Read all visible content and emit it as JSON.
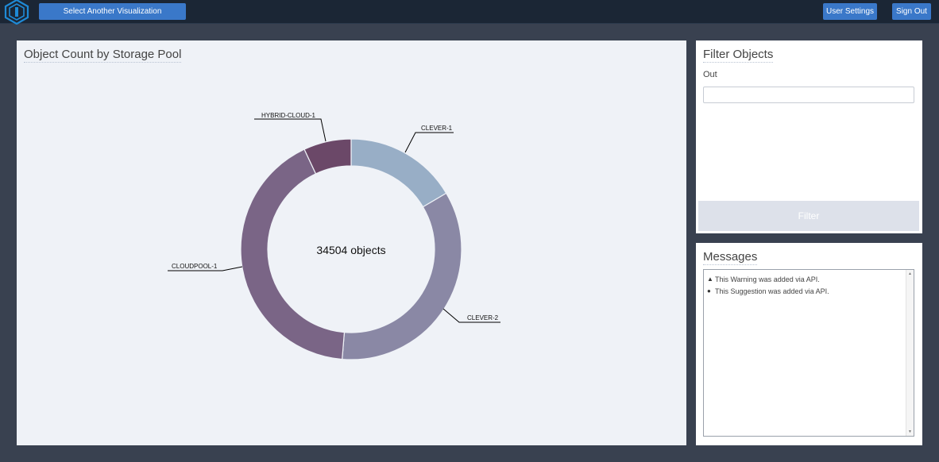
{
  "header": {
    "logo_icon": "hexagon-logo-icon",
    "select_viz_label": "Select Another Visualization",
    "user_settings_label": "User Settings",
    "sign_out_label": "Sign Out"
  },
  "chart_panel": {
    "title": "Object Count by Storage Pool"
  },
  "chart_data": {
    "type": "pie",
    "variant": "donut",
    "center_label": "34504 objects",
    "total": 34504,
    "slices": [
      {
        "label": "CLEVER-1",
        "value": 5700,
        "color": "#98aec6"
      },
      {
        "label": "CLEVER-2",
        "value": 12000,
        "color": "#8a88a5"
      },
      {
        "label": "CLOUDPOOL-1",
        "value": 14400,
        "color": "#7a6586"
      },
      {
        "label": "HYBRID-CLOUD-1",
        "value": 2404,
        "color": "#6b4868"
      }
    ],
    "legend": "leader-line labels"
  },
  "filter_panel": {
    "title": "Filter Objects",
    "field_label": "Out",
    "input_value": "",
    "button_label": "Filter"
  },
  "messages_panel": {
    "title": "Messages",
    "items": [
      {
        "icon": "warning-icon",
        "glyph": "▲",
        "text": "This Warning was added via API."
      },
      {
        "icon": "suggestion-icon",
        "glyph": "●",
        "text": "This Suggestion was added via API."
      }
    ]
  },
  "colors": {
    "topbar": "#1b2635",
    "background": "#394150",
    "button": "#3a78c9",
    "chart_panel": "#eff2f7"
  }
}
